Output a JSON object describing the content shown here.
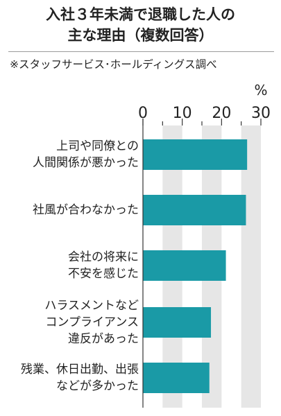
{
  "title_lines": [
    "入社３年未満で退職した人の",
    "主な理由（複数回答）"
  ],
  "source": "※スタッフサービス･ホールディングス調べ",
  "colors": {
    "bar": "#1a9aa6",
    "band": "#e6e6e6",
    "text": "#222222",
    "rule": "#9a9a9a"
  },
  "chart_data": {
    "type": "bar",
    "orientation": "horizontal",
    "unit": "%",
    "xlim": [
      0,
      30
    ],
    "ticks": [
      "0",
      "10",
      "20",
      "30"
    ],
    "grid": "alternating bands every 5",
    "categories": [
      {
        "label_lines": [
          "上司や同僚との",
          "人間関係が悪かった"
        ],
        "value": 26.5
      },
      {
        "label_lines": [
          "社風が合わなかった"
        ],
        "value": 26.2
      },
      {
        "label_lines": [
          "会社の将来に",
          "不安を感じた"
        ],
        "value": 21.1
      },
      {
        "label_lines": [
          "ハラスメントなど",
          "コンプライアンス",
          "違反があった"
        ],
        "value": 17.3
      },
      {
        "label_lines": [
          "残業、休日出勤、出張",
          "などが多かった"
        ],
        "value": 16.9
      }
    ]
  }
}
